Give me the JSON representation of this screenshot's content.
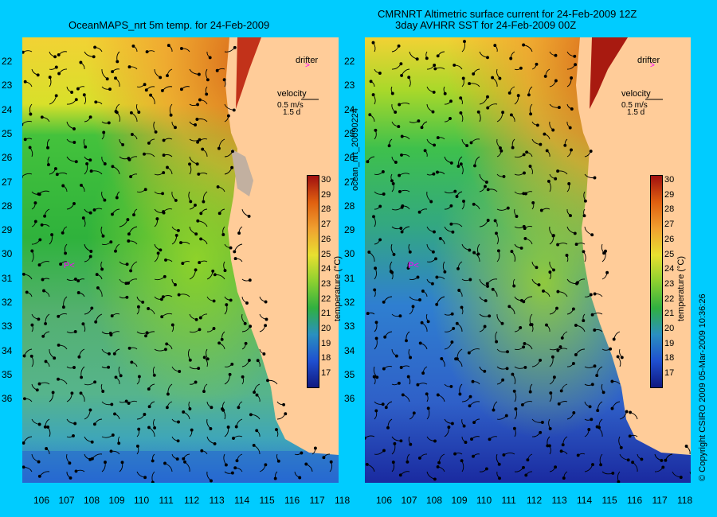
{
  "left_panel": {
    "title": "OceanMAPS_nrt 5m temp. for 24-Feb-2009",
    "drifter_label": "drifter",
    "velocity_label": "velocity",
    "velocity_scale": "0.5 m/s",
    "velocity_scale2": "1.5 d",
    "colorbar_label": "temperature (°C)"
  },
  "right_panel": {
    "title_line1": "CMRNRT Altimetric surface current for 24-Feb-2009 12Z",
    "title_line2": "3day AVHRR SST for 24-Feb-2009 00Z",
    "drifter_label": "drifter",
    "velocity_label": "velocity",
    "velocity_scale": "0.5 m/s",
    "velocity_scale2": "1.5 d",
    "colorbar_label": "temperature (°C)"
  },
  "middle_label": "ocean_nrt_20090224",
  "copyright": "© Copyright CSIRO 2009   05-Mar-2009 10:36:26",
  "lat_ticks": [
    "22",
    "23",
    "24",
    "25",
    "26",
    "27",
    "28",
    "29",
    "30",
    "31",
    "32",
    "33",
    "34",
    "35",
    "36"
  ],
  "lon_ticks": [
    "106",
    "107",
    "108",
    "109",
    "110",
    "111",
    "112",
    "113",
    "114",
    "115",
    "116",
    "117",
    "118"
  ],
  "colorbar_ticks": [
    "30",
    "29",
    "28",
    "27",
    "26",
    "25",
    "24",
    "23",
    "22",
    "21",
    "20",
    "19",
    "18",
    "17"
  ],
  "colors": {
    "background": "#00ccff",
    "land": "#ffcc99",
    "coast_line": "#66ffff",
    "drifter": "#ff00ff"
  }
}
